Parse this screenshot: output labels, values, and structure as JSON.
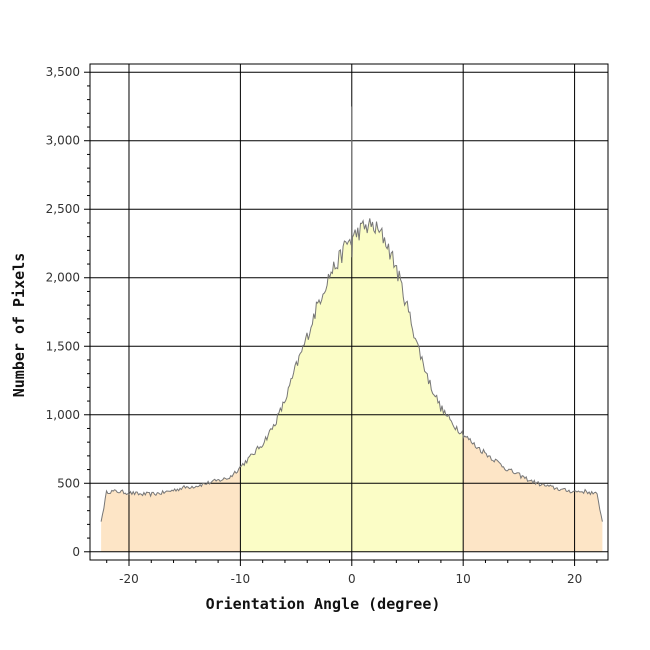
{
  "chart_data": {
    "type": "area",
    "title": "",
    "xlabel": "Orientation Angle (degree)",
    "ylabel": "Number of Pixels",
    "xlim": [
      -23.5,
      23
    ],
    "ylim": [
      -60,
      3560
    ],
    "x_ticks": [
      -20,
      -10,
      0,
      10,
      20
    ],
    "x_tick_labels": [
      "-20",
      "-10",
      "0",
      "10",
      "20"
    ],
    "y_ticks": [
      0,
      500,
      1000,
      1500,
      2000,
      2500,
      3000,
      3500
    ],
    "y_tick_labels": [
      "0",
      "500",
      "1,000",
      "1,500",
      "2,000",
      "2,500",
      "3,000",
      "3,500"
    ],
    "grid": true,
    "legend": "none",
    "colors": {
      "tails": "#fde5c6",
      "center": "#fbfdc6",
      "line": "#777777",
      "grid": "#000000"
    },
    "center_region": [
      -10,
      10
    ],
    "spike": {
      "x": 0,
      "y": 3250
    },
    "series": [
      {
        "x": [
          -22.5,
          -22,
          -21,
          -20,
          -19,
          -18,
          -17,
          -16,
          -15,
          -14,
          -13,
          -12,
          -11,
          -10,
          -9,
          -8,
          -7,
          -6,
          -5,
          -4,
          -3,
          -2,
          -1,
          -0.5,
          0,
          0.5,
          1,
          1.5,
          2,
          3,
          4,
          5,
          6,
          7,
          8,
          9,
          10,
          11,
          12,
          13,
          14,
          15,
          16,
          17,
          18,
          19,
          20,
          21,
          22,
          22.5
        ],
        "y": [
          220,
          440,
          440,
          430,
          420,
          420,
          430,
          450,
          470,
          480,
          500,
          520,
          540,
          620,
          700,
          790,
          920,
          1100,
          1350,
          1570,
          1820,
          2020,
          2150,
          2250,
          2280,
          2330,
          2360,
          2380,
          2370,
          2280,
          2070,
          1780,
          1480,
          1230,
          1050,
          940,
          860,
          780,
          720,
          660,
          600,
          560,
          520,
          490,
          470,
          450,
          440,
          440,
          420,
          220
        ]
      }
    ]
  }
}
